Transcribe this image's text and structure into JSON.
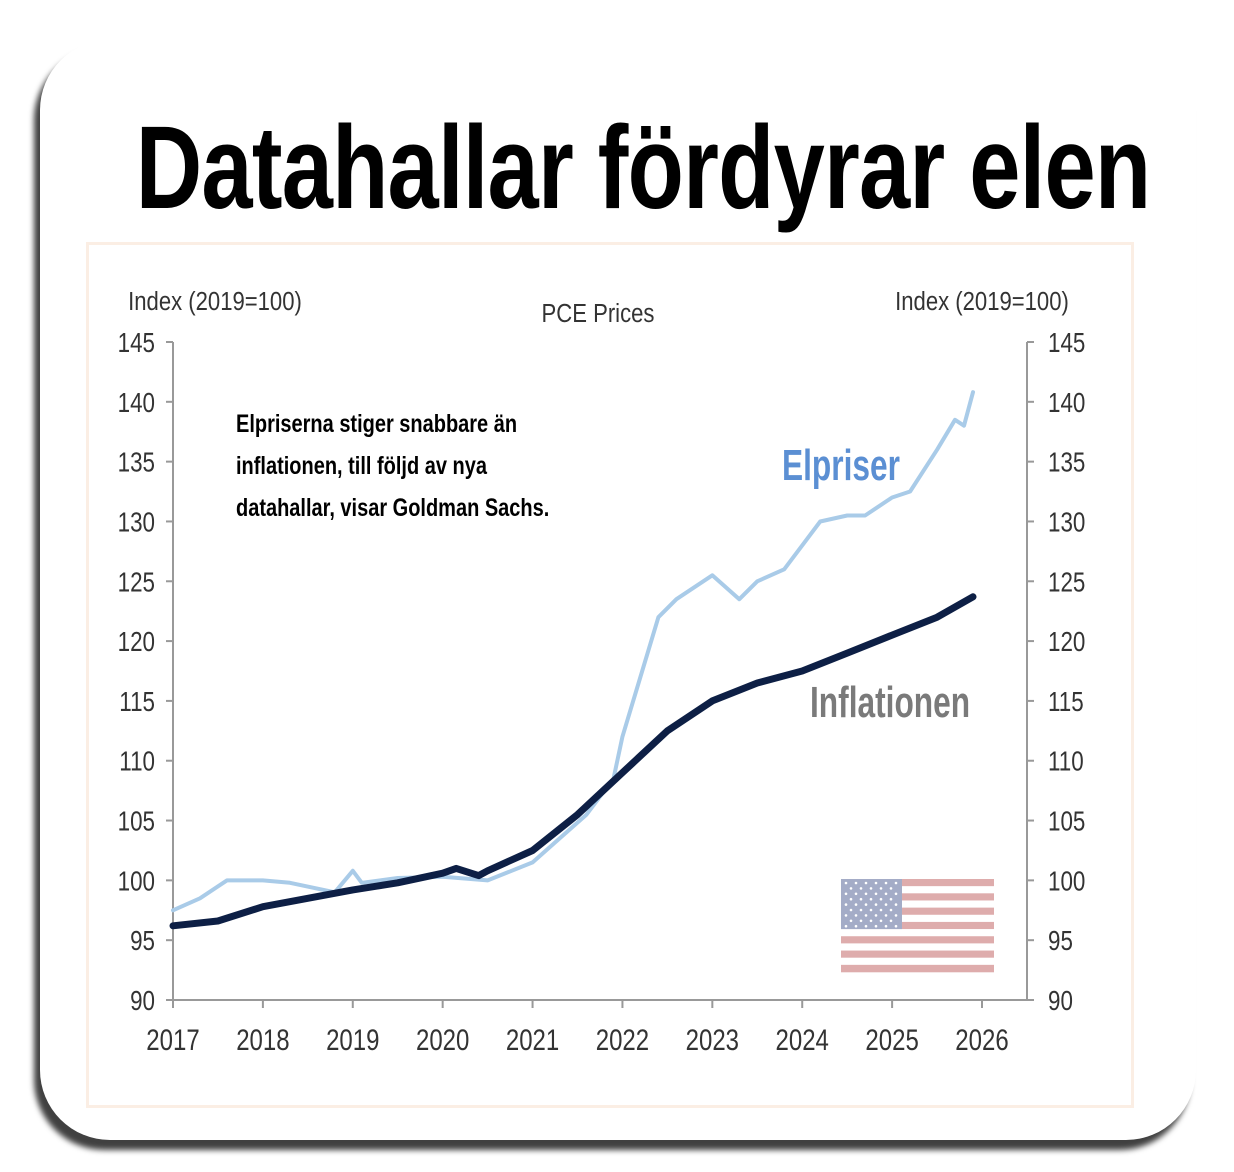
{
  "title": "Datahallar fördyrar elen",
  "chart_data": {
    "type": "line",
    "title": "PCE Prices",
    "ylabel_left": "Index (2019=100)",
    "ylabel_right": "Index (2019=100)",
    "ylim": [
      90,
      145
    ],
    "yticks": [
      90,
      95,
      100,
      105,
      110,
      115,
      120,
      125,
      130,
      135,
      140,
      145
    ],
    "xlim": [
      2017,
      2026
    ],
    "xticks": [
      2017,
      2018,
      2019,
      2020,
      2021,
      2022,
      2023,
      2024,
      2025,
      2026
    ],
    "annotation": [
      "Elpriserna stiger snabbare än",
      "inflationen, till följd av nya",
      "datahallar, visar Goldman Sachs."
    ],
    "series": [
      {
        "name": "Elpriser",
        "color": "#a9cbe8",
        "label_color": "#5b8fd3",
        "x": [
          2017.0,
          2017.3,
          2017.6,
          2018.0,
          2018.3,
          2018.8,
          2019.0,
          2019.1,
          2019.5,
          2020.0,
          2020.5,
          2021.0,
          2021.3,
          2021.6,
          2021.9,
          2022.0,
          2022.2,
          2022.4,
          2022.6,
          2023.0,
          2023.3,
          2023.5,
          2023.8,
          2024.0,
          2024.2,
          2024.5,
          2024.7,
          2025.0,
          2025.2,
          2025.5,
          2025.7,
          2025.8,
          2025.9
        ],
        "y": [
          97.5,
          98.5,
          100,
          100,
          99.8,
          99,
          100.8,
          99.8,
          100.2,
          100.3,
          100,
          101.5,
          103.5,
          105.5,
          108.5,
          112,
          117,
          122,
          123.5,
          125.5,
          123.5,
          125,
          126,
          128,
          130,
          130.5,
          130.5,
          132,
          132.5,
          136,
          138.5,
          138,
          140.8
        ]
      },
      {
        "name": "Inflationen",
        "color": "#0d1f45",
        "label_color": "#7a7a7a",
        "x": [
          2017.0,
          2017.5,
          2018.0,
          2018.5,
          2019.0,
          2019.5,
          2020.0,
          2020.15,
          2020.4,
          2020.5,
          2021.0,
          2021.5,
          2022.0,
          2022.5,
          2023.0,
          2023.5,
          2024.0,
          2024.5,
          2025.0,
          2025.5,
          2025.9
        ],
        "y": [
          96.2,
          96.6,
          97.8,
          98.5,
          99.2,
          99.8,
          100.6,
          101,
          100.4,
          100.8,
          102.5,
          105.5,
          109,
          112.5,
          115,
          116.5,
          117.5,
          119,
          120.5,
          122,
          123.7
        ]
      }
    ]
  }
}
